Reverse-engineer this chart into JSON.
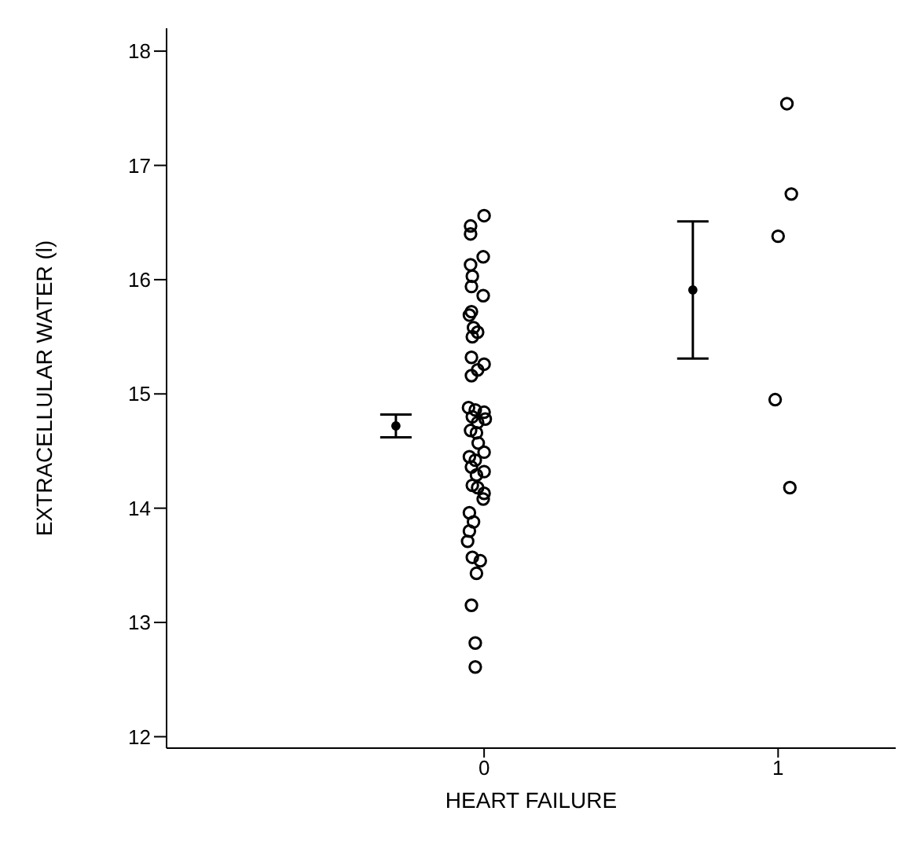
{
  "chart_data": {
    "type": "scatter",
    "xlabel": "HEART FAILURE",
    "ylabel": "EXTRACELLULAR WATER (l)",
    "xlim": [
      -1.08,
      1.4
    ],
    "xticks": [
      0,
      1
    ],
    "ylim": [
      11.9,
      18.2
    ],
    "yticks": [
      12,
      13,
      14,
      15,
      16,
      17,
      18
    ],
    "marker": "circle",
    "grid": false,
    "series": [
      {
        "color": "#000000",
        "x": [
          0.0,
          -0.046,
          -0.046,
          -0.003,
          -0.046,
          -0.04,
          -0.043,
          -0.003,
          -0.043,
          -0.05,
          -0.036,
          -0.022,
          -0.04,
          -0.043,
          0.0,
          -0.022,
          -0.043,
          -0.053,
          -0.03,
          0.0,
          -0.04,
          0.004,
          -0.022,
          -0.046,
          -0.026,
          -0.02,
          0.0,
          -0.05,
          -0.03,
          -0.043,
          0.0,
          -0.026,
          -0.04,
          -0.022,
          0.0,
          -0.003,
          -0.05,
          -0.036,
          -0.05,
          -0.056,
          -0.04,
          -0.013,
          -0.026,
          -0.043,
          -0.03,
          -0.03
        ],
        "values": [
          16.56,
          16.47,
          16.4,
          16.2,
          16.13,
          16.03,
          15.94,
          15.86,
          15.72,
          15.69,
          15.58,
          15.54,
          15.5,
          15.32,
          15.26,
          15.21,
          15.16,
          14.88,
          14.86,
          14.84,
          14.8,
          14.78,
          14.75,
          14.68,
          14.66,
          14.57,
          14.49,
          14.45,
          14.42,
          14.36,
          14.32,
          14.29,
          14.2,
          14.18,
          14.13,
          14.08,
          13.96,
          13.88,
          13.8,
          13.71,
          13.57,
          13.54,
          13.43,
          13.15,
          12.82,
          12.61
        ]
      },
      {
        "color": "#000000",
        "x": [
          1.03,
          1.045,
          1.0,
          0.99,
          1.04
        ],
        "values": [
          17.54,
          16.75,
          16.38,
          14.95,
          14.18
        ]
      },
      {
        "color": "#000000",
        "x": [
          -0.3,
          0.71
        ],
        "values": [
          14.72,
          15.91
        ],
        "errors": [
          0.1,
          0.6
        ]
      }
    ]
  }
}
